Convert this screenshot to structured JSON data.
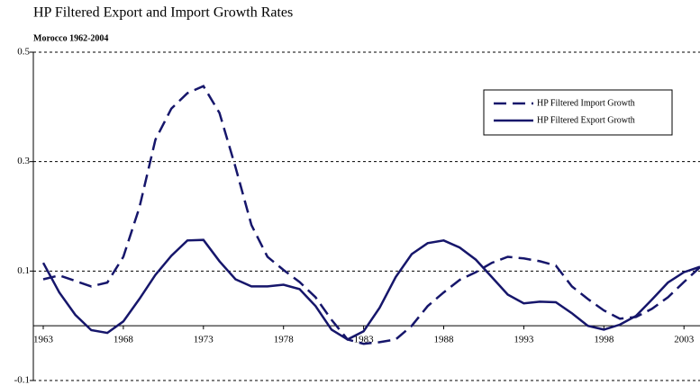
{
  "chart_data": {
    "type": "line",
    "title": "HP Filtered Export and Import Growth Rates",
    "subtitle": "Morocco 1962-2004",
    "x": [
      1963,
      1964,
      1965,
      1966,
      1967,
      1968,
      1969,
      1970,
      1971,
      1972,
      1973,
      1974,
      1975,
      1976,
      1977,
      1978,
      1979,
      1980,
      1981,
      1982,
      1983,
      1984,
      1985,
      1986,
      1987,
      1988,
      1989,
      1990,
      1991,
      1992,
      1993,
      1994,
      1995,
      1996,
      1997,
      1998,
      1999,
      2000,
      2001,
      2002,
      2003,
      2004
    ],
    "series": [
      {
        "name": "HP Filtered Import Growth",
        "color": "#16166b",
        "style": "dashed",
        "values": [
          0.085,
          0.092,
          0.082,
          0.072,
          0.079,
          0.126,
          0.216,
          0.34,
          0.397,
          0.425,
          0.438,
          0.389,
          0.29,
          0.184,
          0.126,
          0.102,
          0.08,
          0.052,
          0.011,
          -0.025,
          -0.033,
          -0.03,
          -0.025,
          0,
          0.036,
          0.061,
          0.084,
          0.098,
          0.115,
          0.126,
          0.123,
          0.118,
          0.11,
          0.072,
          0.049,
          0.028,
          0.013,
          0.016,
          0.031,
          0.052,
          0.08,
          0.107
        ]
      },
      {
        "name": "HP Filtered Export Growth",
        "color": "#16166b",
        "style": "solid",
        "values": [
          0.115,
          0.061,
          0.02,
          -0.008,
          -0.013,
          0.008,
          0.049,
          0.093,
          0.128,
          0.156,
          0.157,
          0.118,
          0.085,
          0.072,
          0.072,
          0.075,
          0.067,
          0.036,
          -0.007,
          -0.025,
          -0.01,
          0.033,
          0.089,
          0.131,
          0.151,
          0.156,
          0.143,
          0.121,
          0.089,
          0.057,
          0.041,
          0.044,
          0.043,
          0.023,
          0,
          -0.007,
          0.002,
          0.018,
          0.048,
          0.079,
          0.098,
          0.108
        ]
      }
    ],
    "xlim": [
      1963,
      2004
    ],
    "xticks": [
      1963,
      1968,
      1973,
      1978,
      1983,
      1988,
      1993,
      1998,
      2003
    ],
    "ylim": [
      -0.1,
      0.5
    ],
    "yticks": [
      0.5,
      0.3,
      0.1,
      -0.1
    ],
    "grid": true,
    "legend": "upper right"
  }
}
